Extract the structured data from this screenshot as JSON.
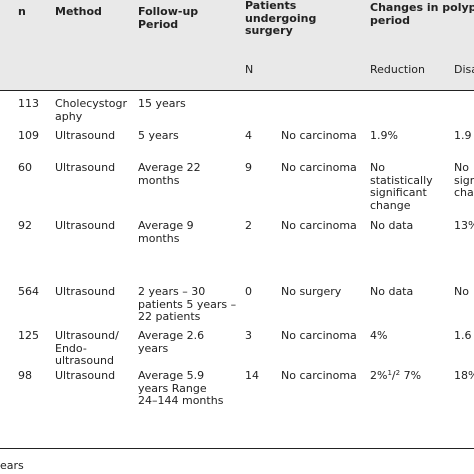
{
  "header": {
    "col_n": "n",
    "col_method": "Method",
    "col_followup": [
      "Follow-up",
      "Period"
    ],
    "col_patients": [
      "Patients",
      "undergoing",
      "surgery"
    ],
    "col_changes": [
      "Changes in polyp",
      "period"
    ]
  },
  "subheader": {
    "n": "N",
    "reduction": "Reduction",
    "disap": "Disa"
  },
  "rows": [
    {
      "n": "113",
      "method": [
        "Cholecystogr",
        "aphy"
      ],
      "followup": [
        "15 years"
      ],
      "surgery_n": "",
      "surgery_result": [],
      "reduction": [],
      "disap": []
    },
    {
      "n": "109",
      "method": [
        "Ultrasound"
      ],
      "followup": [
        "5 years"
      ],
      "surgery_n": "4",
      "surgery_result": [
        "No carcinoma"
      ],
      "reduction": [
        "1.9%"
      ],
      "disap": [
        "1.9"
      ]
    },
    {
      "n": "60",
      "method": [
        "Ultrasound"
      ],
      "followup": [
        "Average 22",
        "months"
      ],
      "surgery_n": "9",
      "surgery_result": [
        "No carcinoma"
      ],
      "reduction": [
        "No",
        "statistically",
        "significant",
        "change"
      ],
      "disap": [
        "No",
        "sign",
        "cha"
      ]
    },
    {
      "n": "92",
      "method": [
        "Ultrasound"
      ],
      "followup": [
        "Average 9",
        "months"
      ],
      "surgery_n": "2",
      "surgery_result": [
        "No carcinoma"
      ],
      "reduction": [
        "No data"
      ],
      "disap": [
        "13%"
      ]
    },
    {
      "n": "564",
      "method": [
        "Ultrasound"
      ],
      "followup": [
        "2 years – 30",
        "patients 5 years –",
        "22 patients"
      ],
      "surgery_n": "0",
      "surgery_result": [
        "No surgery"
      ],
      "reduction": [
        "No data"
      ],
      "disap": [
        "No"
      ]
    },
    {
      "n": "125",
      "method": [
        "Ultrasound/",
        "Endo-",
        "ultrasound"
      ],
      "followup": [
        "Average 2.6",
        "years"
      ],
      "surgery_n": "3",
      "surgery_result": [
        "No carcinoma"
      ],
      "reduction": [
        "4%"
      ],
      "disap": [
        "1.6"
      ]
    },
    {
      "n": "98",
      "method": [
        "Ultrasound"
      ],
      "followup": [
        "Average 5.9",
        "years Range",
        "24–144 months"
      ],
      "surgery_n": "14",
      "surgery_result": [
        "No carcinoma"
      ],
      "reduction": [
        "2%",
        "1",
        "/",
        "2",
        " 7%"
      ],
      "disap": [
        "18%"
      ]
    }
  ],
  "footer_fragment": "ears"
}
